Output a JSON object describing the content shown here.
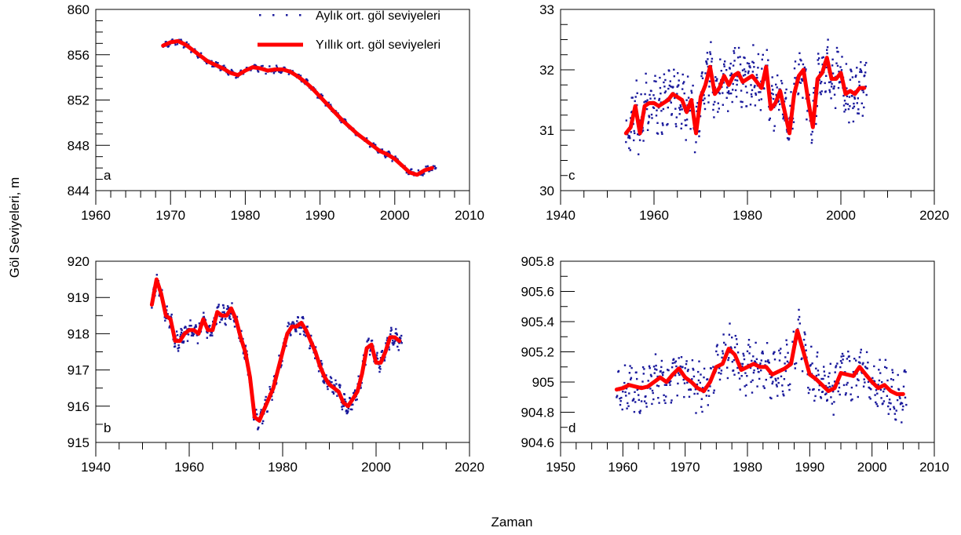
{
  "figure": {
    "shared_ylabel": "Göl Seviyeleri, m",
    "shared_xlabel": "Zaman",
    "legend": {
      "monthly_label": "Aylık ort. göl seviyeleri",
      "yearly_label": "Yıllık ort. göl seviyeleri",
      "placement": "top-right of panel a"
    },
    "colors": {
      "monthly": "#1a1a9c",
      "yearly": "#ff0000"
    }
  },
  "chart_data": [
    {
      "panel": "a",
      "type": "line",
      "xlim": [
        1960,
        2010
      ],
      "ylim": [
        844,
        860
      ],
      "x_ticks": [
        1960,
        1970,
        1980,
        1990,
        2000,
        2010
      ],
      "y_ticks": [
        844,
        848,
        852,
        856,
        860
      ],
      "x_tick_labels": [
        "1960",
        "1970",
        "1980",
        "1990",
        "2000",
        "2010"
      ],
      "y_tick_labels": [
        "844",
        "848",
        "852",
        "856",
        "860"
      ],
      "x_minor_step": 2,
      "y_minor_step": 1,
      "series": [
        {
          "name": "Yıllık ort. göl seviyeleri",
          "x": [
            1969,
            1970,
            1971,
            1972,
            1973,
            1974,
            1975,
            1976,
            1977,
            1978,
            1979,
            1980,
            1981,
            1982,
            1983,
            1984,
            1985,
            1986,
            1987,
            1988,
            1989,
            1990,
            1991,
            1992,
            1993,
            1994,
            1995,
            1996,
            1997,
            1998,
            1999,
            2000,
            2001,
            2002,
            2003,
            2004,
            2005
          ],
          "y": [
            856.8,
            857.1,
            857.2,
            856.9,
            856.4,
            855.9,
            855.4,
            855.1,
            854.8,
            854.4,
            854.2,
            854.6,
            854.9,
            854.8,
            854.6,
            854.7,
            854.7,
            854.5,
            854.1,
            853.6,
            853.0,
            852.3,
            851.6,
            850.9,
            850.2,
            849.6,
            849.0,
            848.5,
            848.0,
            847.5,
            847.2,
            846.8,
            846.2,
            845.6,
            845.4,
            845.8,
            846.0
          ]
        },
        {
          "name": "Aylık ort. göl seviyeleri",
          "x_start": 1969,
          "x_end": 2005.5,
          "spread": 0.3,
          "seed": 11
        }
      ],
      "panel_letter": "a"
    },
    {
      "panel": "b",
      "type": "line",
      "xlim": [
        1940,
        2020
      ],
      "ylim": [
        915,
        920
      ],
      "x_ticks": [
        1940,
        1960,
        1980,
        2000,
        2020
      ],
      "y_ticks": [
        915,
        916,
        917,
        918,
        919,
        920
      ],
      "x_tick_labels": [
        "1940",
        "1960",
        "1980",
        "2000",
        "2020"
      ],
      "y_tick_labels": [
        "915",
        "916",
        "917",
        "918",
        "919",
        "920"
      ],
      "x_minor_step": 5,
      "y_minor_step": 0.5,
      "series": [
        {
          "name": "Yıllık ort. göl seviyeleri",
          "x": [
            1952,
            1953,
            1954,
            1955,
            1956,
            1957,
            1958,
            1959,
            1960,
            1961,
            1962,
            1963,
            1964,
            1965,
            1966,
            1967,
            1968,
            1969,
            1970,
            1971,
            1972,
            1973,
            1974,
            1975,
            1976,
            1977,
            1978,
            1979,
            1980,
            1981,
            1982,
            1983,
            1984,
            1985,
            1986,
            1987,
            1988,
            1989,
            1990,
            1991,
            1992,
            1993,
            1994,
            1995,
            1996,
            1997,
            1998,
            1999,
            2000,
            2001,
            2002,
            2003,
            2004,
            2005
          ],
          "y": [
            918.8,
            919.5,
            919.1,
            918.5,
            918.4,
            917.8,
            917.8,
            918.0,
            918.1,
            918.1,
            918.0,
            918.4,
            918.1,
            918.1,
            918.6,
            918.5,
            918.5,
            918.7,
            918.4,
            917.9,
            917.5,
            916.8,
            915.7,
            915.6,
            915.9,
            916.2,
            916.5,
            917.0,
            917.5,
            918.0,
            918.2,
            918.2,
            918.3,
            918.1,
            917.8,
            917.5,
            917.1,
            916.8,
            916.6,
            916.5,
            916.4,
            916.1,
            916.0,
            916.2,
            916.4,
            916.9,
            917.6,
            917.7,
            917.2,
            917.2,
            917.5,
            917.9,
            917.9,
            917.8
          ]
        },
        {
          "name": "Aylık ort. göl seviyeleri",
          "x_start": 1952,
          "x_end": 2005.5,
          "spread": 0.25,
          "seed": 23
        }
      ],
      "panel_letter": "b"
    },
    {
      "panel": "c",
      "type": "line",
      "xlim": [
        1940,
        2020
      ],
      "ylim": [
        30,
        33
      ],
      "x_ticks": [
        1940,
        1960,
        1980,
        2000,
        2020
      ],
      "y_ticks": [
        30,
        31,
        32,
        33
      ],
      "x_tick_labels": [
        "1940",
        "1960",
        "1980",
        "2000",
        "2020"
      ],
      "y_tick_labels": [
        "30",
        "31",
        "32",
        "33"
      ],
      "x_minor_step": 5,
      "y_minor_step": 0.25,
      "series": [
        {
          "name": "Yıllık ort. göl seviyeleri",
          "x": [
            1954,
            1955,
            1956,
            1957,
            1958,
            1959,
            1960,
            1961,
            1962,
            1963,
            1964,
            1965,
            1966,
            1967,
            1968,
            1969,
            1970,
            1971,
            1972,
            1973,
            1974,
            1975,
            1976,
            1977,
            1978,
            1979,
            1980,
            1981,
            1982,
            1983,
            1984,
            1985,
            1986,
            1987,
            1988,
            1989,
            1990,
            1991,
            1992,
            1993,
            1994,
            1995,
            1996,
            1997,
            1998,
            1999,
            2000,
            2001,
            2002,
            2003,
            2004,
            2005
          ],
          "y": [
            30.95,
            31.05,
            31.4,
            30.95,
            31.4,
            31.45,
            31.45,
            31.4,
            31.45,
            31.5,
            31.6,
            31.55,
            31.5,
            31.3,
            31.5,
            30.95,
            31.55,
            31.75,
            32.05,
            31.6,
            31.7,
            31.9,
            31.75,
            31.9,
            31.95,
            31.8,
            31.85,
            31.9,
            31.8,
            31.7,
            32.05,
            31.35,
            31.45,
            31.65,
            31.3,
            30.95,
            31.6,
            31.9,
            32.0,
            31.5,
            31.05,
            31.85,
            31.95,
            32.2,
            31.85,
            31.85,
            31.95,
            31.6,
            31.65,
            31.6,
            31.7,
            31.7
          ]
        },
        {
          "name": "Aylık ort. göl seviyeleri",
          "x_start": 1954,
          "x_end": 2005.5,
          "spread": 0.45,
          "seed": 37
        }
      ],
      "panel_letter": "c"
    },
    {
      "panel": "d",
      "type": "line",
      "xlim": [
        1950,
        2010
      ],
      "ylim": [
        904.6,
        905.8
      ],
      "x_ticks": [
        1950,
        1960,
        1970,
        1980,
        1990,
        2000,
        2010
      ],
      "y_ticks": [
        904.6,
        904.8,
        905.0,
        905.2,
        905.4,
        905.6,
        905.8
      ],
      "x_tick_labels": [
        "1950",
        "1960",
        "1970",
        "1980",
        "1990",
        "2000",
        "2010"
      ],
      "y_tick_labels": [
        "904.6",
        "904.8",
        "905",
        "905.2",
        "905.4",
        "905.6",
        "905.8"
      ],
      "x_minor_step": 2.5,
      "y_minor_step": 0.1,
      "series": [
        {
          "name": "Yıllık ort. göl seviyeleri",
          "x": [
            1959,
            1960,
            1961,
            1962,
            1963,
            1964,
            1965,
            1966,
            1967,
            1968,
            1969,
            1970,
            1971,
            1972,
            1973,
            1974,
            1975,
            1976,
            1977,
            1978,
            1979,
            1980,
            1981,
            1982,
            1983,
            1984,
            1985,
            1986,
            1987,
            1988,
            1989,
            1990,
            1991,
            1992,
            1993,
            1994,
            1995,
            1996,
            1997,
            1998,
            1999,
            2000,
            2001,
            2002,
            2003,
            2004,
            2005
          ],
          "y": [
            904.95,
            904.96,
            904.98,
            904.97,
            904.96,
            904.97,
            905.0,
            905.03,
            905.0,
            905.05,
            905.09,
            905.03,
            905.0,
            904.96,
            904.94,
            905.0,
            905.1,
            905.12,
            905.22,
            905.18,
            905.08,
            905.1,
            905.12,
            905.1,
            905.1,
            905.05,
            905.07,
            905.09,
            905.12,
            905.34,
            905.2,
            905.05,
            905.02,
            904.98,
            904.94,
            904.96,
            905.06,
            905.05,
            905.04,
            905.1,
            905.05,
            905.0,
            904.96,
            904.98,
            904.94,
            904.92,
            904.92
          ]
        },
        {
          "name": "Aylık ort. göl seviyeleri",
          "x_start": 1959,
          "x_end": 2005.5,
          "spread": 0.16,
          "seed": 53
        }
      ],
      "panel_letter": "d"
    }
  ]
}
